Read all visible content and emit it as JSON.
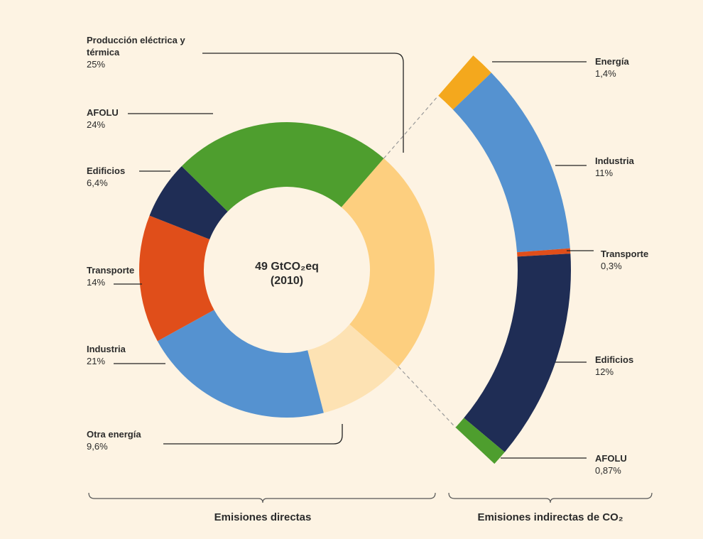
{
  "chart_data": {
    "type": "donut",
    "center_label": "49 GtCO₂eq",
    "center_sub": "(2010)",
    "series": [
      {
        "name": "Emisiones directas",
        "categories": [
          "Producción eléctrica y térmica",
          "Otra energía",
          "Industria",
          "Transporte",
          "Edificios",
          "AFOLU"
        ],
        "values": [
          25,
          9.6,
          21,
          14,
          6.4,
          24
        ],
        "value_labels": [
          "25%",
          "9,6%",
          "21%",
          "14%",
          "6,4%",
          "24%"
        ],
        "colors": [
          "#fdcf7f",
          "#fde2b3",
          "#5592d0",
          "#e04e1a",
          "#1f2d55",
          "#4e9e2e"
        ]
      },
      {
        "name": "Emisiones indirectas de CO₂",
        "categories": [
          "Energía",
          "Industria",
          "Transporte",
          "Edificios",
          "AFOLU"
        ],
        "values": [
          1.4,
          11,
          0.3,
          12,
          0.87
        ],
        "value_labels": [
          "1,4%",
          "11%",
          "0,3%",
          "12%",
          "0,87%"
        ],
        "colors": [
          "#f4a81d",
          "#5592d0",
          "#e04e1a",
          "#1f2d55",
          "#4e9e2e"
        ]
      }
    ]
  }
}
